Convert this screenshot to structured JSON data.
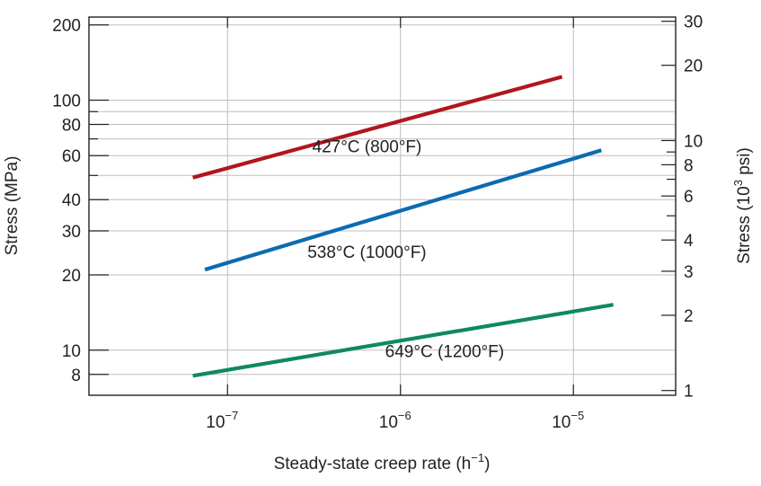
{
  "chart_data": {
    "type": "line",
    "title": "",
    "xlabel": "Steady-state creep rate (h",
    "xlabel_exponent": "−1",
    "xlabel_suffix": ")",
    "ylabel": "Stress (MPa)",
    "y2label": "Stress (10",
    "y2label_exponent": "3",
    "y2label_suffix": " psi)",
    "x_scale": "log",
    "y_scale": "log",
    "xlim": [
      1.58e-08,
      3.9e-05
    ],
    "ylim": [
      6.6,
      215
    ],
    "grid": true,
    "x_ticks": [
      {
        "value": 1e-07,
        "base": "10",
        "exp": "−7"
      },
      {
        "value": 1e-06,
        "base": "10",
        "exp": "−6"
      },
      {
        "value": 1e-05,
        "base": "10",
        "exp": "−5"
      }
    ],
    "y_ticks": [
      {
        "value": 200,
        "label": "200"
      },
      {
        "value": 100,
        "label": "100"
      },
      {
        "value": 80,
        "label": "80"
      },
      {
        "value": 60,
        "label": "60"
      },
      {
        "value": 40,
        "label": "40"
      },
      {
        "value": 30,
        "label": "30"
      },
      {
        "value": 20,
        "label": "20"
      },
      {
        "value": 10,
        "label": "10"
      },
      {
        "value": 8,
        "label": "8"
      }
    ],
    "y_minor_ticks": [
      90,
      70,
      50
    ],
    "y2_ticks": [
      {
        "value": 30,
        "label": "30"
      },
      {
        "value": 20,
        "label": "20"
      },
      {
        "value": 10,
        "label": "10"
      },
      {
        "value": 8,
        "label": "8"
      },
      {
        "value": 6,
        "label": "6"
      },
      {
        "value": 4,
        "label": "4"
      },
      {
        "value": 3,
        "label": "3"
      },
      {
        "value": 2,
        "label": "2"
      },
      {
        "value": 1,
        "label": "1"
      }
    ],
    "y2_minor_ticks": [
      9,
      7,
      5
    ],
    "y2_unit_ksi_in_mpa": 6.895,
    "series": [
      {
        "name": "427°C (800°F)",
        "color": "#b0161f",
        "x": [
          6.3e-08,
          8.6e-06
        ],
        "y": [
          49,
          124
        ],
        "label_at": {
          "x": 6.4e-07,
          "y": 62
        }
      },
      {
        "name": "538°C (1000°F)",
        "color": "#0b6bb0",
        "x": [
          7.4e-08,
          1.45e-05
        ],
        "y": [
          21,
          63
        ],
        "label_at": {
          "x": 6.4e-07,
          "y": 23.4
        }
      },
      {
        "name": "649°C (1200°F)",
        "color": "#0e8a5b",
        "x": [
          6.3e-08,
          1.7e-05
        ],
        "y": [
          7.9,
          15.2
        ],
        "label_at": {
          "x": 1.8e-06,
          "y": 9.4
        }
      }
    ]
  }
}
